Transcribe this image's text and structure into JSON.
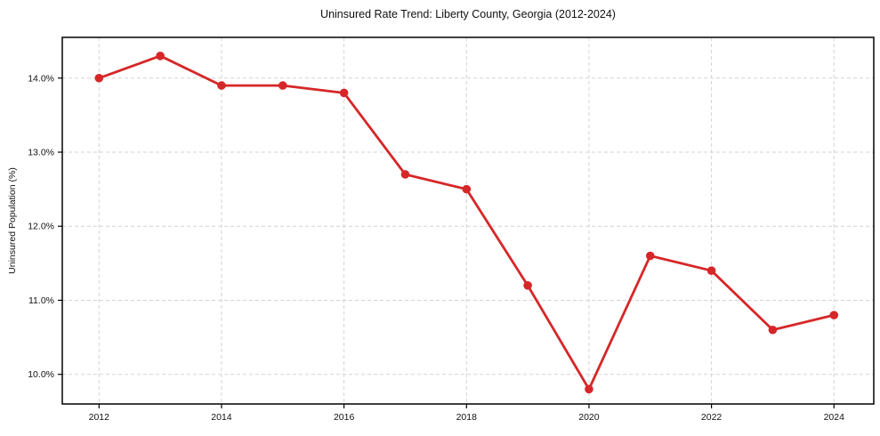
{
  "figure": {
    "background": "#ffffff"
  },
  "chart_data": {
    "type": "line",
    "title": "Uninsured Rate Trend: Liberty County, Georgia (2012-2024)",
    "xlabel": "",
    "ylabel": "Uninsured Population (%)",
    "x": [
      2012,
      2013,
      2014,
      2015,
      2016,
      2017,
      2018,
      2019,
      2020,
      2021,
      2022,
      2023,
      2024
    ],
    "values": [
      14.0,
      14.3,
      13.9,
      13.9,
      13.8,
      12.7,
      12.5,
      11.2,
      9.8,
      11.6,
      11.4,
      10.6,
      10.8
    ],
    "x_ticks": [
      2012,
      2014,
      2016,
      2018,
      2020,
      2022,
      2024
    ],
    "x_tick_labels": [
      "2012",
      "2014",
      "2016",
      "2018",
      "2020",
      "2022",
      "2024"
    ],
    "y_ticks": [
      10.0,
      11.0,
      12.0,
      13.0,
      14.0
    ],
    "y_tick_labels": [
      "10.0%",
      "11.0%",
      "12.0%",
      "13.0%",
      "14.0%"
    ],
    "xlim": [
      2011.4,
      2024.65
    ],
    "ylim": [
      9.6,
      14.55
    ],
    "grid": true,
    "legend_position": "none",
    "line_color": "#d62728",
    "marker_color": "#d62728",
    "marker": "circle",
    "grid_color": "#d3d3d3",
    "axis_color": "#000000"
  }
}
